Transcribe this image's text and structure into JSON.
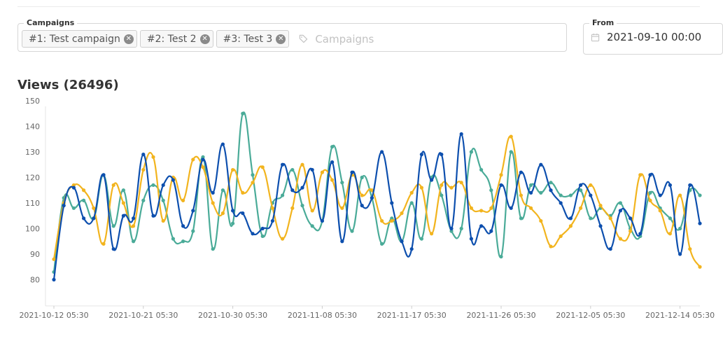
{
  "filters": {
    "campaigns_label": "Campaigns",
    "campaign_tags": [
      {
        "label": "#1: Test campaign"
      },
      {
        "label": "#2: Test 2"
      },
      {
        "label": "#3: Test 3"
      }
    ],
    "campaigns_placeholder": "Campaigns",
    "from_label": "From",
    "from_value": "2021-09-10 00:00"
  },
  "views": {
    "title": "Views (26496)"
  },
  "chart_data": {
    "type": "line",
    "ylim": [
      75,
      152
    ],
    "yticks": [
      80,
      90,
      100,
      110,
      120,
      130,
      140,
      150
    ],
    "xticks": [
      "2021-10-12 05:30",
      "2021-10-21 05:30",
      "2021-10-30 05:30",
      "2021-11-08 05:30",
      "2021-11-17 05:30",
      "2021-11-26 05:30",
      "2021-12-05 05:30",
      "2021-12-14 05:30"
    ],
    "x_days": [
      0,
      9,
      18,
      27,
      36,
      45,
      54,
      63
    ],
    "series": [
      {
        "color": "#0d4fae",
        "x": [
          0,
          1,
          2,
          3,
          4,
          5,
          6,
          7,
          8,
          9,
          10,
          11,
          12,
          13,
          14,
          15,
          16,
          17,
          18,
          19,
          20,
          21,
          22,
          23,
          24,
          25,
          26,
          27,
          28,
          29,
          30,
          31,
          32,
          33,
          34,
          35,
          36,
          37,
          38,
          39,
          40,
          41,
          42,
          43,
          44,
          45,
          46,
          47,
          48,
          49,
          50,
          51,
          52,
          53,
          54,
          55,
          56,
          57,
          58,
          59,
          60,
          61,
          62,
          63,
          64,
          65
        ],
        "values": [
          80,
          109,
          116,
          104,
          104,
          121,
          92,
          105,
          104,
          129,
          105,
          117,
          119,
          101,
          107,
          127,
          114,
          133,
          107,
          106,
          98,
          100,
          103,
          125,
          115,
          116,
          123,
          103,
          126,
          95,
          122,
          109,
          112,
          130,
          110,
          95,
          92,
          129,
          119,
          129,
          100,
          137,
          96,
          101,
          99,
          117,
          108,
          122,
          114,
          125,
          115,
          110,
          104,
          117,
          113,
          101,
          92,
          107,
          104,
          98,
          121,
          113,
          117,
          90,
          117,
          102
        ]
      },
      {
        "color": "#f2b41e",
        "x": [
          0,
          1,
          2,
          3,
          4,
          5,
          6,
          7,
          8,
          9,
          10,
          11,
          12,
          13,
          14,
          15,
          16,
          17,
          18,
          19,
          20,
          21,
          22,
          23,
          24,
          25,
          26,
          27,
          28,
          29,
          30,
          31,
          32,
          33,
          34,
          35,
          36,
          37,
          38,
          39,
          40,
          41,
          42,
          43,
          44,
          45,
          46,
          47,
          48,
          49,
          50,
          51,
          52,
          53,
          54,
          55,
          56,
          57,
          58,
          59,
          60,
          61,
          62,
          63,
          64,
          65
        ],
        "values": [
          88,
          110,
          117,
          115,
          108,
          94,
          117,
          110,
          101,
          123,
          128,
          103,
          120,
          111,
          127,
          124,
          110,
          106,
          123,
          114,
          118,
          124,
          108,
          96,
          108,
          125,
          107,
          122,
          119,
          108,
          121,
          113,
          115,
          103,
          103,
          106,
          114,
          116,
          98,
          117,
          116,
          118,
          108,
          107,
          108,
          121,
          136,
          113,
          108,
          103,
          93,
          97,
          101,
          108,
          117,
          109,
          104,
          96,
          99,
          121,
          111,
          107,
          98,
          113,
          92,
          85
        ]
      },
      {
        "color": "#4aab98",
        "x": [
          0,
          1,
          2,
          3,
          4,
          5,
          6,
          7,
          8,
          9,
          10,
          11,
          12,
          13,
          14,
          15,
          16,
          17,
          18,
          19,
          20,
          21,
          22,
          23,
          24,
          25,
          26,
          27,
          28,
          29,
          30,
          31,
          32,
          33,
          34,
          35,
          36,
          37,
          38,
          39,
          40,
          41,
          42,
          43,
          44,
          45,
          46,
          47,
          48,
          49,
          50,
          51,
          52,
          53,
          54,
          55,
          56,
          57,
          58,
          59,
          60,
          61,
          62,
          63,
          64,
          65
        ],
        "values": [
          83,
          112,
          108,
          111,
          104,
          121,
          101,
          115,
          95,
          111,
          117,
          111,
          96,
          95,
          99,
          128,
          92,
          115,
          102,
          145,
          121,
          97,
          110,
          113,
          123,
          109,
          101,
          103,
          132,
          118,
          99,
          120,
          112,
          94,
          104,
          95,
          110,
          96,
          120,
          113,
          99,
          100,
          130,
          123,
          115,
          89,
          130,
          104,
          117,
          114,
          118,
          113,
          113,
          115,
          104,
          108,
          105,
          110,
          100,
          97,
          114,
          108,
          104,
          100,
          115,
          113
        ]
      }
    ]
  }
}
